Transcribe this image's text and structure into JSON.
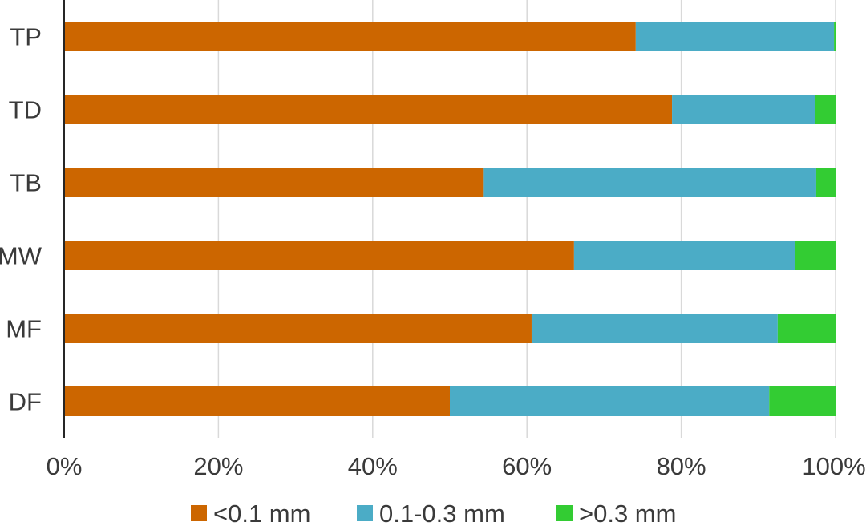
{
  "chart_data": {
    "type": "bar",
    "orientation": "horizontal",
    "stacked": true,
    "normalized_percent": true,
    "categories": [
      "TP",
      "TD",
      "TB",
      "MW",
      "MF",
      "DF"
    ],
    "series": [
      {
        "name": "<0.1 mm",
        "color": "#cc6600",
        "values": [
          74.1,
          78.8,
          54.3,
          66.1,
          60.6,
          50.0
        ]
      },
      {
        "name": "0.1-0.3 mm",
        "color": "#4bacc6",
        "values": [
          25.7,
          18.5,
          43.2,
          28.7,
          31.9,
          41.4
        ]
      },
      {
        "name": ">0.3 mm",
        "color": "#33cc33",
        "values": [
          0.2,
          2.7,
          2.5,
          5.2,
          7.5,
          8.6
        ]
      }
    ],
    "x_ticks": [
      "0%",
      "20%",
      "40%",
      "60%",
      "80%",
      "100%"
    ],
    "xlim": [
      0,
      100
    ],
    "grid": "vertical",
    "legend_position": "bottom",
    "title": "",
    "xlabel": "",
    "ylabel": ""
  }
}
